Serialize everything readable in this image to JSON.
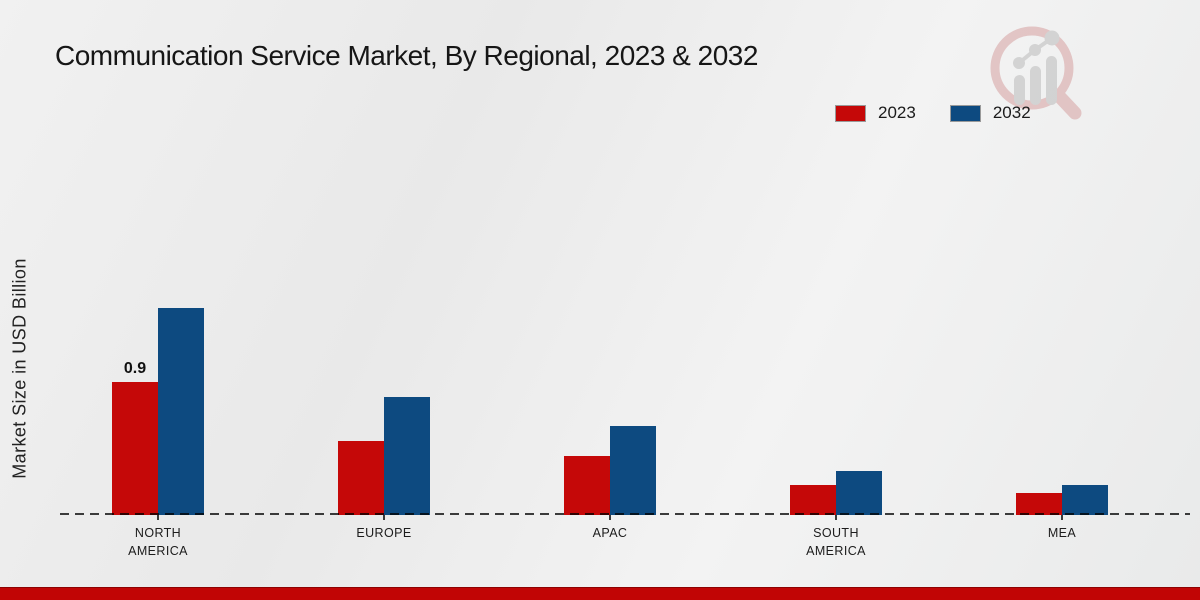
{
  "title": "Communication Service Market, By Regional, 2023 & 2032",
  "ylabel": "Market Size in USD Billion",
  "legend": {
    "items": [
      {
        "label": "2023",
        "color": "#c50808"
      },
      {
        "label": "2032",
        "color": "#0d4a80"
      }
    ]
  },
  "chart_data": {
    "type": "bar",
    "title": "Communication Service Market, By Regional, 2023 & 2032",
    "ylabel": "Market Size in USD Billion",
    "categories": [
      "NORTH AMERICA",
      "EUROPE",
      "APAC",
      "SOUTH AMERICA",
      "MEA"
    ],
    "series": [
      {
        "name": "2023",
        "color": "#c50808",
        "values": [
          0.9,
          0.5,
          0.4,
          0.2,
          0.15
        ]
      },
      {
        "name": "2032",
        "color": "#0d4a80",
        "values": [
          1.4,
          0.8,
          0.6,
          0.3,
          0.2
        ]
      }
    ],
    "data_labels": [
      {
        "series_index": 0,
        "category_index": 0,
        "text": "0.9"
      }
    ],
    "ylim": [
      0,
      1.5
    ],
    "unit": "USD Billion",
    "grid": false,
    "legend_position": "top-right",
    "baseline_style": "dashed"
  },
  "watermark": {
    "name": "market-research-logo"
  },
  "footer": {
    "bar_color": "#c10505"
  }
}
